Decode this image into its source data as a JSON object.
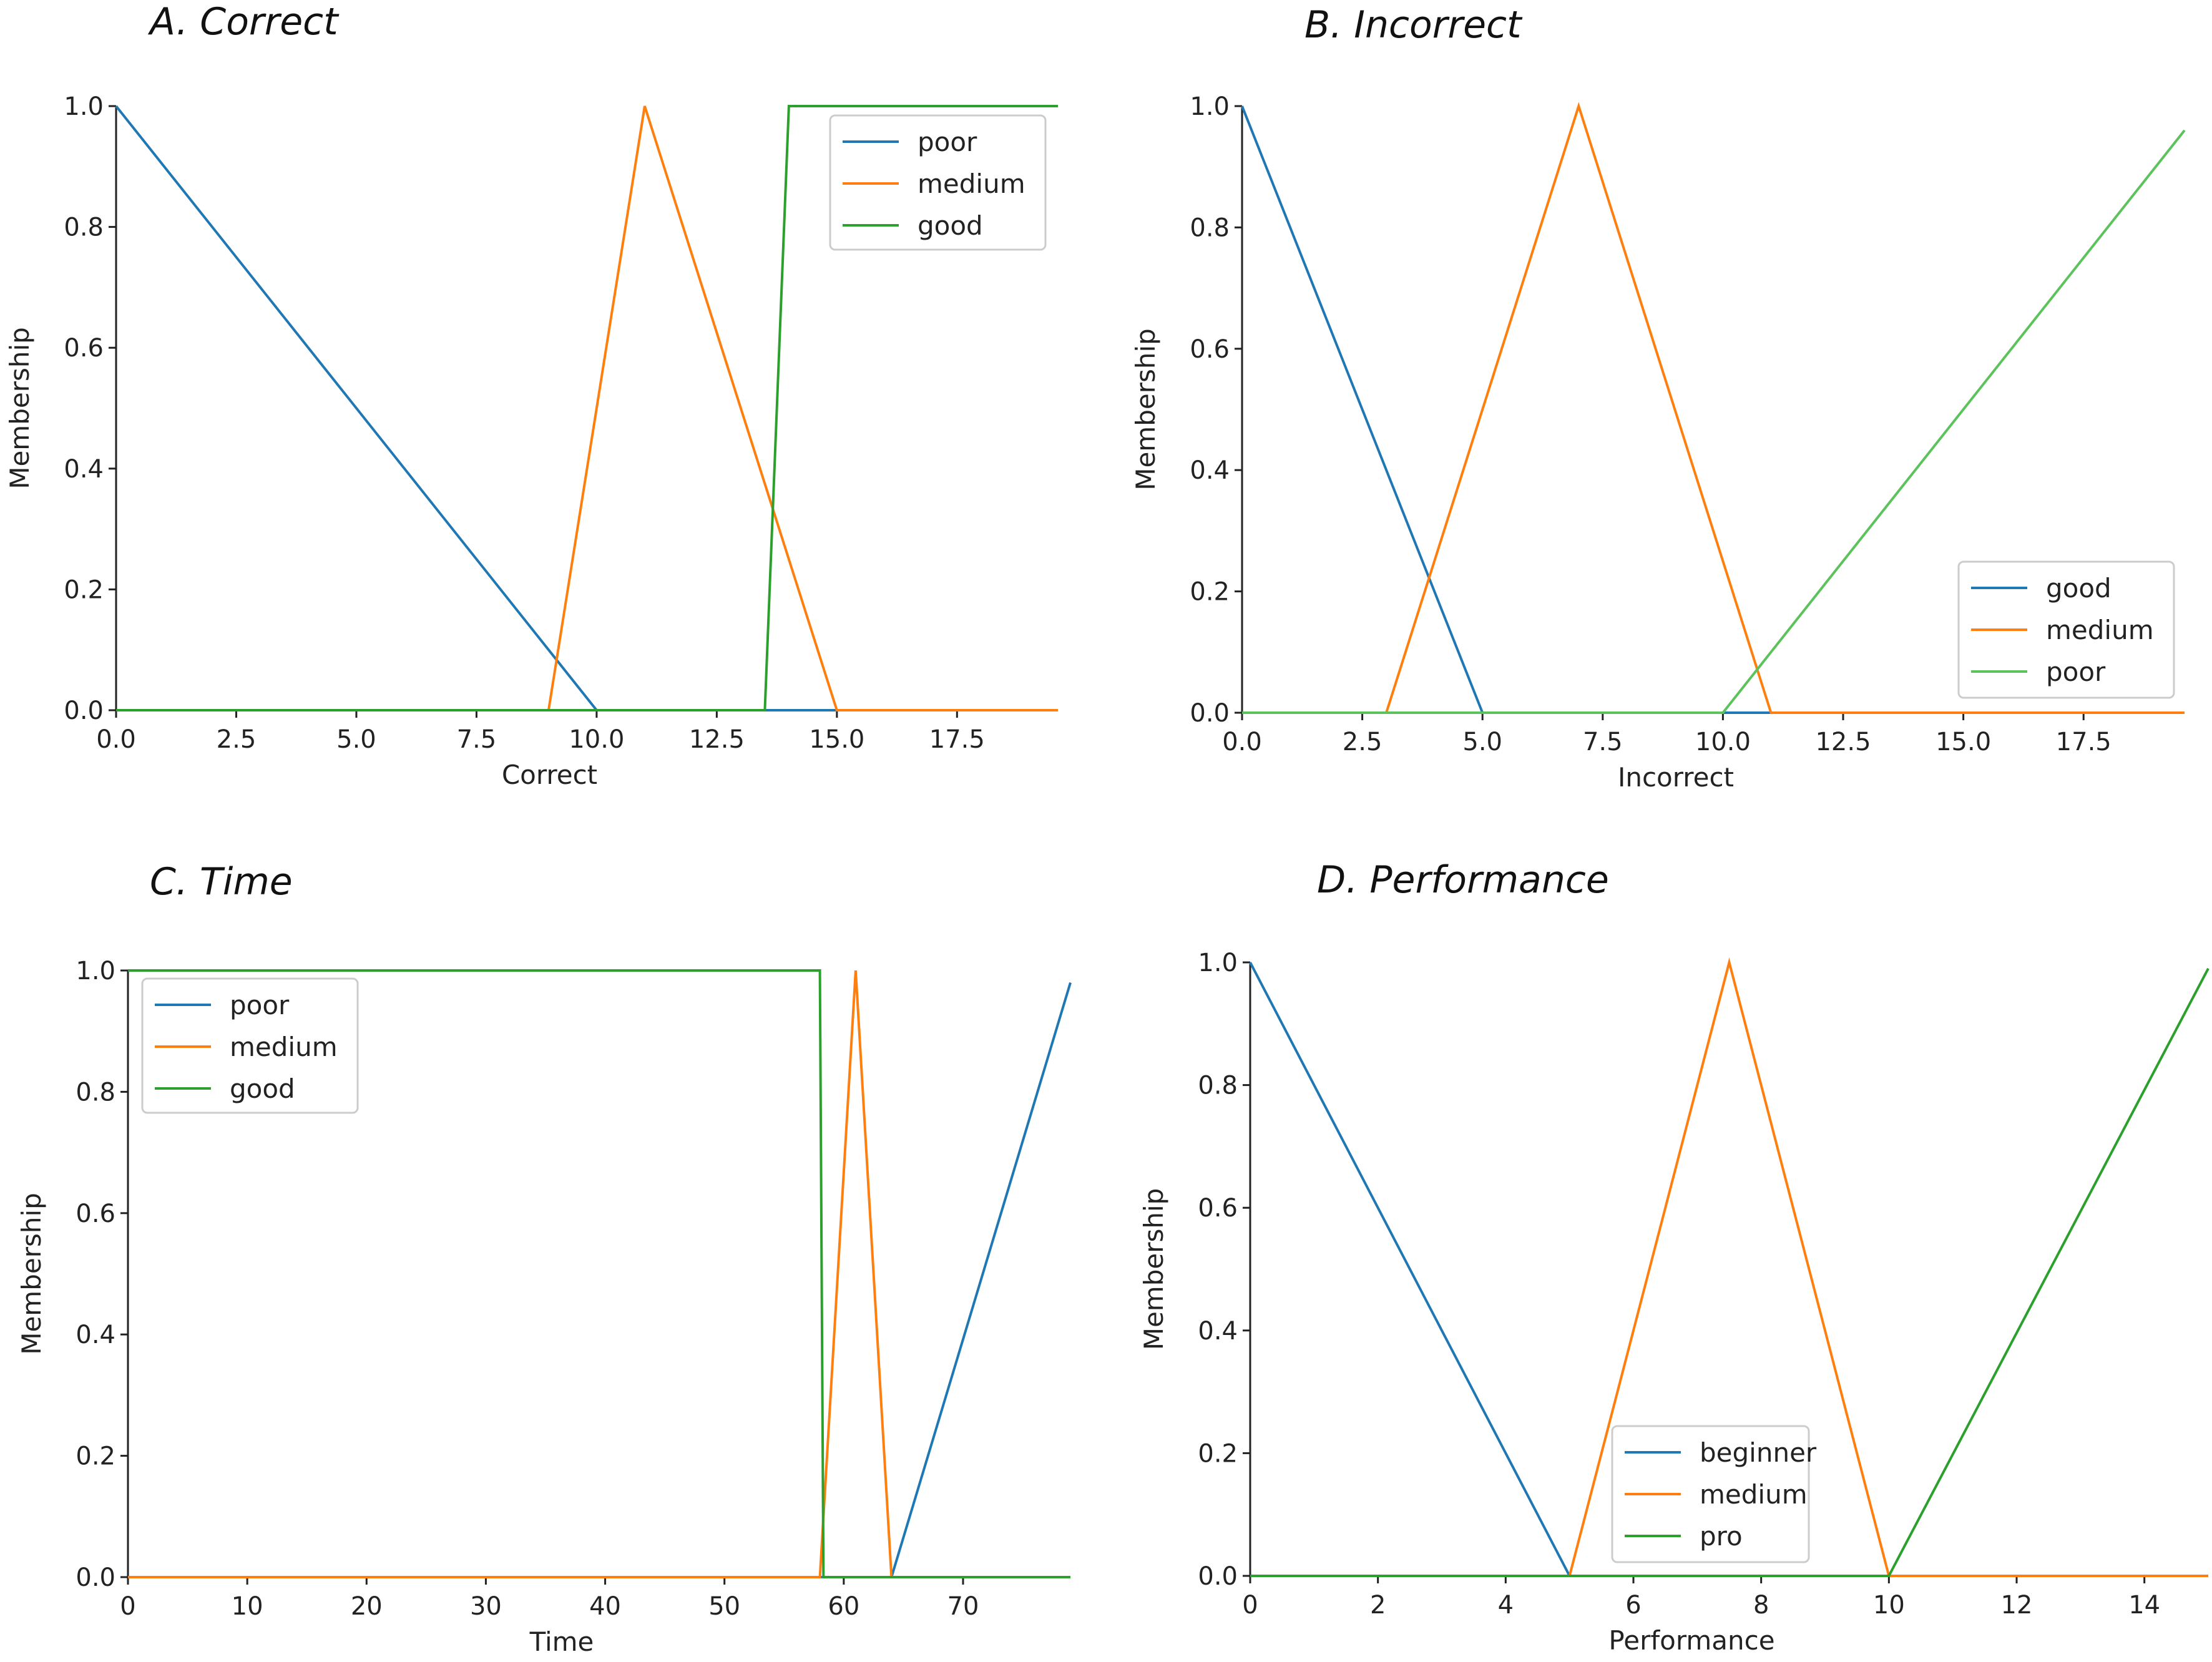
{
  "colors": {
    "blue": "#1f77b4",
    "orange": "#ff7f0e",
    "green": "#2ca02c",
    "green_light": "#5cc25c"
  },
  "chart_data": [
    {
      "id": "A",
      "title": "A. Correct",
      "type": "line",
      "xlabel": "Correct",
      "ylabel": "Membership",
      "xlim": [
        0,
        19.6
      ],
      "ylim": [
        0,
        1.0
      ],
      "xticks": [
        0,
        2.5,
        5,
        7.5,
        10,
        12.5,
        15,
        17.5
      ],
      "xtick_labels": [
        "0.0",
        "2.5",
        "5.0",
        "7.5",
        "10.0",
        "12.5",
        "15.0",
        "17.5"
      ],
      "yticks": [
        0,
        0.2,
        0.4,
        0.6,
        0.8,
        1.0
      ],
      "ytick_labels": [
        "0.0",
        "0.2",
        "0.4",
        "0.6",
        "0.8",
        "1.0"
      ],
      "legend_position": "top-right",
      "series": [
        {
          "name": "poor",
          "color": "#1f77b4",
          "points": [
            [
              0,
              1
            ],
            [
              10,
              0
            ],
            [
              19.6,
              0
            ]
          ]
        },
        {
          "name": "medium",
          "color": "#ff7f0e",
          "points": [
            [
              0,
              0
            ],
            [
              9,
              0
            ],
            [
              11,
              1
            ],
            [
              15,
              0
            ],
            [
              19.6,
              0
            ]
          ]
        },
        {
          "name": "good",
          "color": "#2ca02c",
          "points": [
            [
              0,
              0
            ],
            [
              13.5,
              0
            ],
            [
              14,
              1
            ],
            [
              19.6,
              1
            ]
          ]
        }
      ]
    },
    {
      "id": "B",
      "title": "B. Incorrect",
      "type": "line",
      "xlabel": "Incorrect",
      "ylabel": "Membership",
      "xlim": [
        0,
        19.6
      ],
      "ylim": [
        0,
        1.0
      ],
      "xticks": [
        0,
        2.5,
        5,
        7.5,
        10,
        12.5,
        15,
        17.5
      ],
      "xtick_labels": [
        "0.0",
        "2.5",
        "5.0",
        "7.5",
        "10.0",
        "12.5",
        "15.0",
        "17.5"
      ],
      "yticks": [
        0,
        0.2,
        0.4,
        0.6,
        0.8,
        1.0
      ],
      "ytick_labels": [
        "0.0",
        "0.2",
        "0.4",
        "0.6",
        "0.8",
        "1.0"
      ],
      "legend_position": "bottom-right",
      "series": [
        {
          "name": "good",
          "color": "#1f77b4",
          "points": [
            [
              0,
              1
            ],
            [
              5,
              0
            ],
            [
              19.6,
              0
            ]
          ]
        },
        {
          "name": "medium",
          "color": "#ff7f0e",
          "points": [
            [
              0,
              0
            ],
            [
              3,
              0
            ],
            [
              7,
              1
            ],
            [
              11,
              0
            ],
            [
              19.6,
              0
            ]
          ]
        },
        {
          "name": "poor",
          "color": "#5cc25c",
          "points": [
            [
              0,
              0
            ],
            [
              10,
              0
            ],
            [
              19.6,
              0.96
            ]
          ]
        }
      ]
    },
    {
      "id": "C",
      "title": "C. Time",
      "type": "line",
      "xlabel": "Time",
      "ylabel": "Membership",
      "xlim": [
        0,
        79
      ],
      "ylim": [
        0,
        1.0
      ],
      "xticks": [
        0,
        10,
        20,
        30,
        40,
        50,
        60,
        70
      ],
      "xtick_labels": [
        "0",
        "10",
        "20",
        "30",
        "40",
        "50",
        "60",
        "70"
      ],
      "yticks": [
        0,
        0.2,
        0.4,
        0.6,
        0.8,
        1.0
      ],
      "ytick_labels": [
        "0.0",
        "0.2",
        "0.4",
        "0.6",
        "0.8",
        "1.0"
      ],
      "legend_position": "top-left",
      "series": [
        {
          "name": "poor",
          "color": "#1f77b4",
          "points": [
            [
              0,
              0
            ],
            [
              64,
              0
            ],
            [
              79,
              0.98
            ]
          ]
        },
        {
          "name": "medium",
          "color": "#ff7f0e",
          "points": [
            [
              0,
              0
            ],
            [
              58,
              0
            ],
            [
              61,
              1
            ],
            [
              64,
              0
            ],
            [
              79,
              0
            ]
          ]
        },
        {
          "name": "good",
          "color": "#2ca02c",
          "points": [
            [
              0,
              1
            ],
            [
              58,
              1
            ],
            [
              58.3,
              0
            ],
            [
              79,
              0
            ]
          ]
        }
      ]
    },
    {
      "id": "D",
      "title": "D. Performance",
      "type": "line",
      "xlabel": "Performance",
      "ylabel": "Membership",
      "xlim": [
        0,
        15
      ],
      "ylim": [
        0,
        1.0
      ],
      "xticks": [
        0,
        2,
        4,
        6,
        8,
        10,
        12,
        14
      ],
      "xtick_labels": [
        "0",
        "2",
        "4",
        "6",
        "8",
        "10",
        "12",
        "14"
      ],
      "yticks": [
        0,
        0.2,
        0.4,
        0.6,
        0.8,
        1.0
      ],
      "ytick_labels": [
        "0.0",
        "0.2",
        "0.4",
        "0.6",
        "0.8",
        "1.0"
      ],
      "legend_position": "bottom-center",
      "series": [
        {
          "name": "beginner",
          "color": "#1f77b4",
          "points": [
            [
              0,
              1
            ],
            [
              5,
              0
            ],
            [
              15,
              0
            ]
          ]
        },
        {
          "name": "medium",
          "color": "#ff7f0e",
          "points": [
            [
              0,
              0
            ],
            [
              5,
              0
            ],
            [
              7.5,
              1
            ],
            [
              10,
              0
            ],
            [
              15,
              0
            ]
          ]
        },
        {
          "name": "pro",
          "color": "#2ca02c",
          "points": [
            [
              0,
              0
            ],
            [
              10,
              0
            ],
            [
              15,
              0.99
            ]
          ]
        }
      ]
    }
  ]
}
